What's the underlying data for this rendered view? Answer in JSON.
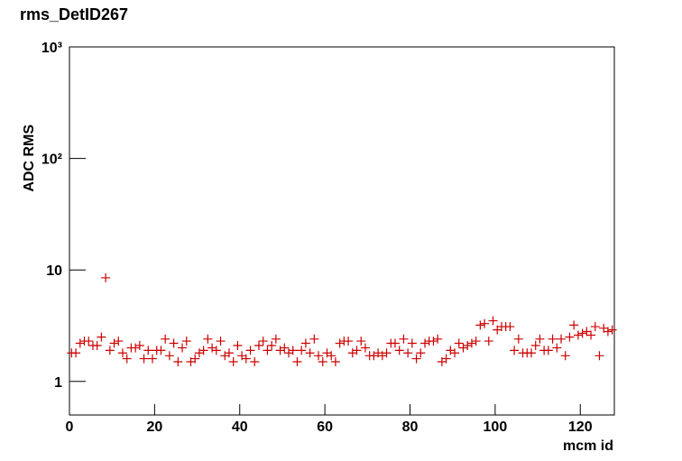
{
  "chart_data": {
    "type": "scatter",
    "title": "rms_DetID267",
    "x_label": "mcm id",
    "y_label": "ADC RMS",
    "log_y": true,
    "color": "#cc0000",
    "xlim": [
      0,
      128
    ],
    "xticks": [
      0,
      20,
      40,
      60,
      80,
      100,
      120
    ],
    "ylim": [
      0.5,
      1000
    ],
    "yticks": [
      1,
      10,
      {
        "value": 100,
        "label": "10²"
      },
      {
        "value": 1000,
        "label": "10³"
      }
    ],
    "x": [
      0.5,
      1.5,
      2.5,
      3.5,
      4.5,
      5.5,
      6.5,
      7.5,
      8.5,
      9.5,
      10.5,
      11.5,
      12.5,
      13.5,
      14.5,
      15.5,
      16.5,
      17.5,
      18.5,
      19.5,
      20.5,
      21.5,
      22.5,
      23.5,
      24.5,
      25.5,
      26.5,
      27.5,
      28.5,
      29.5,
      30.5,
      31.5,
      32.5,
      33.5,
      34.5,
      35.5,
      36.5,
      37.5,
      38.5,
      39.5,
      40.5,
      41.5,
      42.5,
      43.5,
      44.5,
      45.5,
      46.5,
      47.5,
      48.5,
      49.5,
      50.5,
      51.5,
      52.5,
      53.5,
      54.5,
      55.5,
      56.5,
      57.5,
      58.5,
      59.5,
      60.5,
      61.5,
      62.5,
      63.5,
      64.5,
      65.5,
      66.5,
      67.5,
      68.5,
      69.5,
      70.5,
      71.5,
      72.5,
      73.5,
      74.5,
      75.5,
      76.5,
      77.5,
      78.5,
      79.5,
      80.5,
      81.5,
      82.5,
      83.5,
      84.5,
      85.5,
      86.5,
      87.5,
      88.5,
      89.5,
      90.5,
      91.5,
      92.5,
      93.5,
      94.5,
      95.5,
      96.5,
      97.5,
      98.5,
      99.5,
      100.5,
      101.5,
      102.5,
      103.5,
      104.5,
      105.5,
      106.5,
      107.5,
      108.5,
      109.5,
      110.5,
      111.5,
      112.5,
      113.5,
      114.5,
      115.5,
      116.5,
      117.5,
      118.5,
      119.5,
      120.5,
      121.5,
      122.5,
      123.5,
      124.5,
      125.5,
      126.5,
      127.5
    ],
    "values": [
      1.8,
      1.8,
      2.2,
      2.3,
      2.3,
      2.1,
      2.1,
      2.5,
      8.5,
      1.9,
      2.2,
      2.3,
      1.8,
      1.6,
      2.0,
      2.0,
      2.1,
      1.6,
      1.9,
      1.6,
      1.9,
      1.9,
      2.4,
      1.7,
      2.2,
      1.5,
      2.0,
      2.3,
      1.5,
      1.6,
      1.8,
      1.9,
      2.4,
      2.0,
      1.9,
      2.3,
      1.7,
      1.8,
      1.5,
      2.1,
      1.7,
      1.6,
      1.9,
      1.5,
      2.1,
      2.3,
      1.9,
      2.1,
      2.4,
      1.9,
      2.0,
      1.8,
      1.9,
      1.5,
      1.9,
      2.2,
      1.8,
      2.4,
      1.7,
      1.5,
      1.8,
      1.7,
      1.5,
      2.2,
      2.3,
      2.3,
      1.8,
      1.9,
      2.3,
      2.0,
      1.7,
      1.7,
      1.8,
      1.7,
      1.8,
      2.2,
      2.2,
      1.9,
      2.4,
      1.8,
      2.2,
      1.6,
      1.8,
      2.2,
      2.3,
      2.3,
      2.4,
      1.5,
      1.6,
      1.9,
      1.8,
      2.2,
      2.0,
      2.1,
      2.2,
      2.3,
      3.2,
      3.3,
      2.3,
      3.5,
      2.9,
      3.1,
      3.1,
      3.1,
      1.9,
      2.4,
      1.8,
      1.8,
      1.8,
      2.1,
      2.4,
      1.9,
      1.9,
      2.4,
      2.0,
      2.4,
      1.7,
      2.5,
      3.2,
      2.6,
      2.7,
      2.8,
      2.6,
      3.1,
      1.7,
      3.0,
      2.8,
      2.9
    ]
  }
}
